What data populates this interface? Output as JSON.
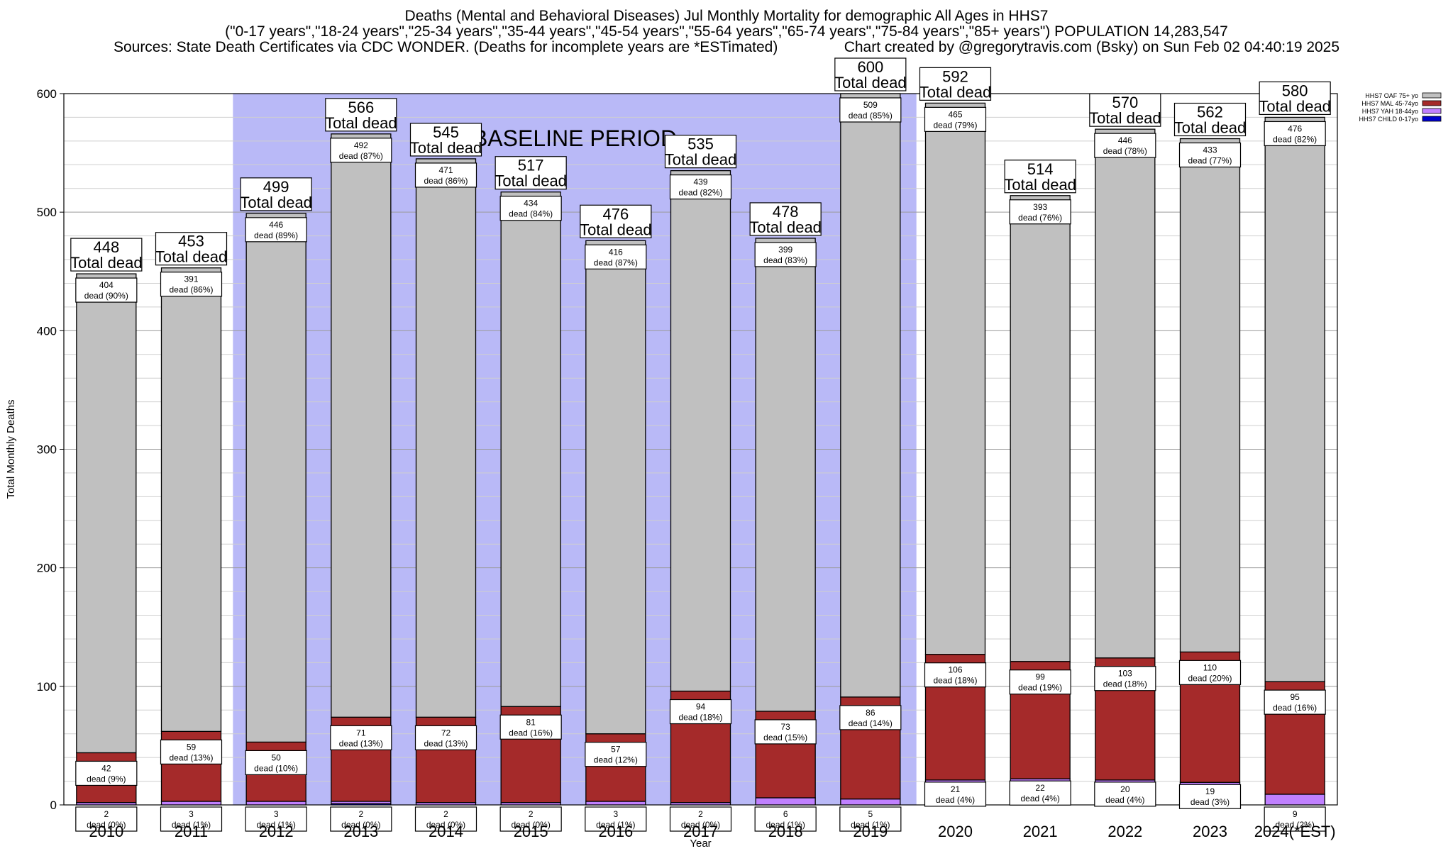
{
  "header": {
    "title": "Deaths (Mental and Behavioral Diseases) Jul Monthly Mortality for demographic All Ages in HHS7",
    "age_groups": "(\"0-17 years\",\"18-24 years\",\"25-34 years\",\"35-44 years\",\"45-54 years\",\"55-64 years\",\"65-74 years\",\"75-84 years\",\"85+ years\") POPULATION 14,283,547",
    "sources": "Sources: State Death Certificates via CDC WONDER. (Deaths for incomplete years are *ESTimated)",
    "credit": "Chart created by @gregorytravis.com (Bsky) on Sun Feb 02 04:40:19 2025"
  },
  "chart_data": {
    "type": "bar",
    "stacked": true,
    "xlabel": "Year",
    "ylabel": "Total Monthly Deaths",
    "ylim": [
      0,
      600
    ],
    "yticks": [
      0,
      100,
      200,
      300,
      400,
      500,
      600
    ],
    "grid": true,
    "legend_position": "top-right",
    "categories": [
      "2010",
      "2011",
      "2012",
      "2013",
      "2014",
      "2015",
      "2016",
      "2017",
      "2018",
      "2019",
      "2020",
      "2021",
      "2022",
      "2023",
      "2024(*EST)"
    ],
    "baseline": {
      "label": "BASELINE PERIOD",
      "start": "2012",
      "end": "2019"
    },
    "total_label": "Total dead",
    "dead_word": "dead",
    "totals": [
      448,
      453,
      499,
      566,
      545,
      517,
      476,
      535,
      478,
      600,
      592,
      514,
      570,
      562,
      580
    ],
    "series": [
      {
        "name": "HHS7 CHILD 0-17yo",
        "color": "#0000cc",
        "values": [
          0,
          0,
          0,
          1,
          0,
          0,
          0,
          0,
          0,
          0,
          0,
          0,
          1,
          0,
          0
        ]
      },
      {
        "name": "HHS7 YAH 18-44yo",
        "color": "#c080ff",
        "values": [
          2,
          3,
          3,
          2,
          2,
          2,
          3,
          2,
          6,
          5,
          21,
          22,
          20,
          19,
          9
        ],
        "labels": [
          "2\ndead (0%)",
          "3\ndead (1%)",
          "3\ndead (1%)",
          "2\ndead (0%)",
          "2\ndead (0%)",
          "2\ndead (0%)",
          "3\ndead (1%)",
          "2\ndead (0%)",
          "6\ndead (1%)",
          "5\ndead (1%)",
          "21\ndead (4%)",
          "22\ndead (4%)",
          "20\ndead (4%)",
          "19\ndead (3%)",
          "9\ndead (2%)"
        ]
      },
      {
        "name": "HHS7 MAL 45-74yo",
        "color": "#a52a2a",
        "values": [
          42,
          59,
          50,
          71,
          72,
          81,
          57,
          94,
          73,
          86,
          106,
          99,
          103,
          110,
          95
        ],
        "labels": [
          "42\ndead (9%)",
          "59\ndead (13%)",
          "50\ndead (10%)",
          "71\ndead (13%)",
          "72\ndead (13%)",
          "81\ndead (16%)",
          "57\ndead (12%)",
          "94\ndead (18%)",
          "73\ndead (15%)",
          "86\ndead (14%)",
          "106\ndead (18%)",
          "99\ndead (19%)",
          "103\ndead (18%)",
          "110\ndead (20%)",
          "95\ndead (16%)"
        ]
      },
      {
        "name": "HHS7 OAF 75+ yo",
        "color": "#c0c0c0",
        "values": [
          404,
          391,
          446,
          492,
          471,
          434,
          416,
          439,
          399,
          509,
          465,
          393,
          446,
          433,
          476
        ],
        "labels": [
          "404\ndead (90%)",
          "391\ndead (86%)",
          "446\ndead (89%)",
          "492\ndead (87%)",
          "471\ndead (86%)",
          "434\ndead (84%)",
          "416\ndead (87%)",
          "439\ndead (82%)",
          "399\ndead (83%)",
          "509\ndead (85%)",
          "465\ndead (79%)",
          "393\ndead (76%)",
          "446\ndead (78%)",
          "433\ndead (77%)",
          "476\ndead (82%)"
        ]
      }
    ]
  }
}
